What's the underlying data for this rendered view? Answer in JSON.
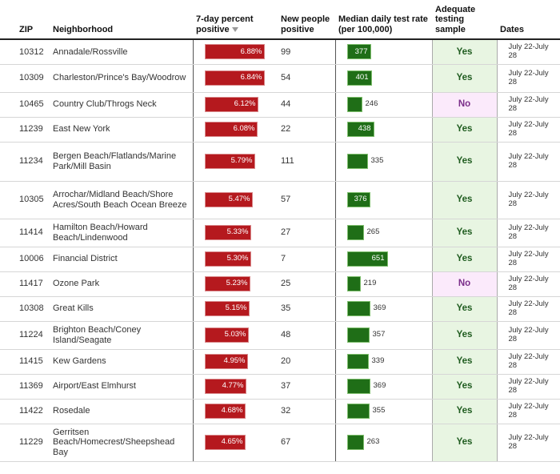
{
  "headers": {
    "zip": "ZIP",
    "neighborhood": "Neighborhood",
    "positive": "7-day percent positive",
    "new_positive": "New people positive",
    "test_rate": "Median daily test rate (per 100,000)",
    "adequate": "Adequate testing sample",
    "dates": "Dates"
  },
  "rows": [
    {
      "zip": "10312",
      "neighborhood": "Annadale/Rossville",
      "pct_label": "6.88%",
      "pct": 6.88,
      "new_positive": "99",
      "rate_label": "377",
      "rate": 377,
      "adequate": "Yes",
      "dates": "July 22-July 28"
    },
    {
      "zip": "10309",
      "neighborhood": "Charleston/Prince's Bay/Woodrow",
      "pct_label": "6.84%",
      "pct": 6.84,
      "new_positive": "54",
      "rate_label": "401",
      "rate": 401,
      "adequate": "Yes",
      "dates": "July 22-July 28"
    },
    {
      "zip": "10465",
      "neighborhood": "Country Club/Throgs Neck",
      "pct_label": "6.12%",
      "pct": 6.12,
      "new_positive": "44",
      "rate_label": "246",
      "rate": 246,
      "adequate": "No",
      "dates": "July 22-July 28"
    },
    {
      "zip": "11239",
      "neighborhood": "East New York",
      "pct_label": "6.08%",
      "pct": 6.08,
      "new_positive": "22",
      "rate_label": "438",
      "rate": 438,
      "adequate": "Yes",
      "dates": "July 22-July 28"
    },
    {
      "zip": "11234",
      "neighborhood": "Bergen Beach/Flatlands/Marine Park/Mill Basin",
      "pct_label": "5.79%",
      "pct": 5.79,
      "new_positive": "111",
      "rate_label": "335",
      "rate": 335,
      "adequate": "Yes",
      "dates": "July 22-July 28"
    },
    {
      "zip": "10305",
      "neighborhood": "Arrochar/Midland Beach/Shore Acres/South Beach Ocean Breeze",
      "pct_label": "5.47%",
      "pct": 5.47,
      "new_positive": "57",
      "rate_label": "376",
      "rate": 376,
      "adequate": "Yes",
      "dates": "July 22-July 28"
    },
    {
      "zip": "11414",
      "neighborhood": "Hamilton Beach/Howard Beach/Lindenwood",
      "pct_label": "5.33%",
      "pct": 5.33,
      "new_positive": "27",
      "rate_label": "265",
      "rate": 265,
      "adequate": "Yes",
      "dates": "July 22-July 28"
    },
    {
      "zip": "10006",
      "neighborhood": "Financial District",
      "pct_label": "5.30%",
      "pct": 5.3,
      "new_positive": "7",
      "rate_label": "651",
      "rate": 651,
      "adequate": "Yes",
      "dates": "July 22-July 28"
    },
    {
      "zip": "11417",
      "neighborhood": "Ozone Park",
      "pct_label": "5.23%",
      "pct": 5.23,
      "new_positive": "25",
      "rate_label": "219",
      "rate": 219,
      "adequate": "No",
      "dates": "July 22-July 28"
    },
    {
      "zip": "10308",
      "neighborhood": "Great Kills",
      "pct_label": "5.15%",
      "pct": 5.15,
      "new_positive": "35",
      "rate_label": "369",
      "rate": 369,
      "adequate": "Yes",
      "dates": "July 22-July 28"
    },
    {
      "zip": "11224",
      "neighborhood": "Brighton Beach/Coney Island/Seagate",
      "pct_label": "5.03%",
      "pct": 5.03,
      "new_positive": "48",
      "rate_label": "357",
      "rate": 357,
      "adequate": "Yes",
      "dates": "July 22-July 28"
    },
    {
      "zip": "11415",
      "neighborhood": "Kew Gardens",
      "pct_label": "4.95%",
      "pct": 4.95,
      "new_positive": "20",
      "rate_label": "339",
      "rate": 339,
      "adequate": "Yes",
      "dates": "July 22-July 28"
    },
    {
      "zip": "11369",
      "neighborhood": "Airport/East Elmhurst",
      "pct_label": "4.77%",
      "pct": 4.77,
      "new_positive": "37",
      "rate_label": "369",
      "rate": 369,
      "adequate": "Yes",
      "dates": "July 22-July 28"
    },
    {
      "zip": "11422",
      "neighborhood": "Rosedale",
      "pct_label": "4.68%",
      "pct": 4.68,
      "new_positive": "32",
      "rate_label": "355",
      "rate": 355,
      "adequate": "Yes",
      "dates": "July 22-July 28"
    },
    {
      "zip": "11229",
      "neighborhood": "Gerritsen Beach/Homecrest/Sheepshead Bay",
      "pct_label": "4.65%",
      "pct": 4.65,
      "new_positive": "67",
      "rate_label": "263",
      "rate": 263,
      "adequate": "Yes",
      "dates": "July 22-July 28"
    }
  ]
}
